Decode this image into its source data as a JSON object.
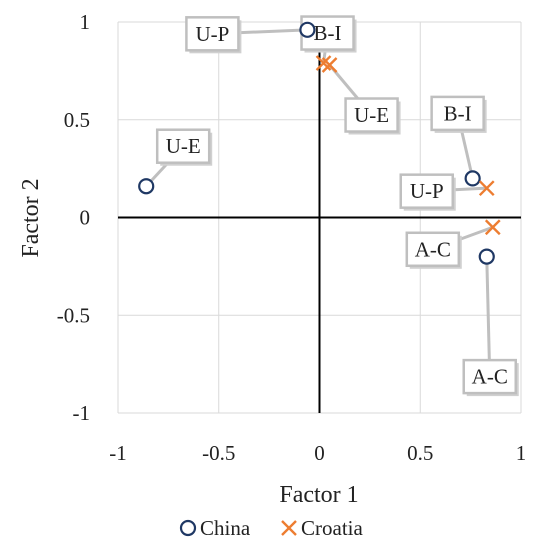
{
  "chart_data": {
    "type": "scatter",
    "xlabel": "Factor 1",
    "ylabel": "Factor 2",
    "xlim": [
      -1,
      1
    ],
    "ylim": [
      -1,
      1
    ],
    "xticks": [
      "-1",
      "-0.5",
      "0",
      "0.5",
      "1"
    ],
    "yticks": [
      "1",
      "0.5",
      "0",
      "-0.5",
      "-1"
    ],
    "grid": true,
    "legend_position": "bottom",
    "series": [
      {
        "name": "China",
        "marker": "circle",
        "color": "#1f3864",
        "points": [
          {
            "label": "U-P",
            "x": -0.06,
            "y": 0.96
          },
          {
            "label": "U-E",
            "x": -0.86,
            "y": 0.16
          },
          {
            "label": "B-I",
            "x": 0.76,
            "y": 0.2
          },
          {
            "label": "A-C",
            "x": 0.83,
            "y": -0.2
          }
        ]
      },
      {
        "name": "Croatia",
        "marker": "x",
        "color": "#ed7d31",
        "points": [
          {
            "label": "B-I",
            "x": 0.02,
            "y": 0.79
          },
          {
            "label": "U-E",
            "x": 0.05,
            "y": 0.78
          },
          {
            "label": "U-P",
            "x": 0.83,
            "y": 0.15
          },
          {
            "label": "A-C",
            "x": 0.86,
            "y": -0.05
          }
        ]
      }
    ]
  }
}
